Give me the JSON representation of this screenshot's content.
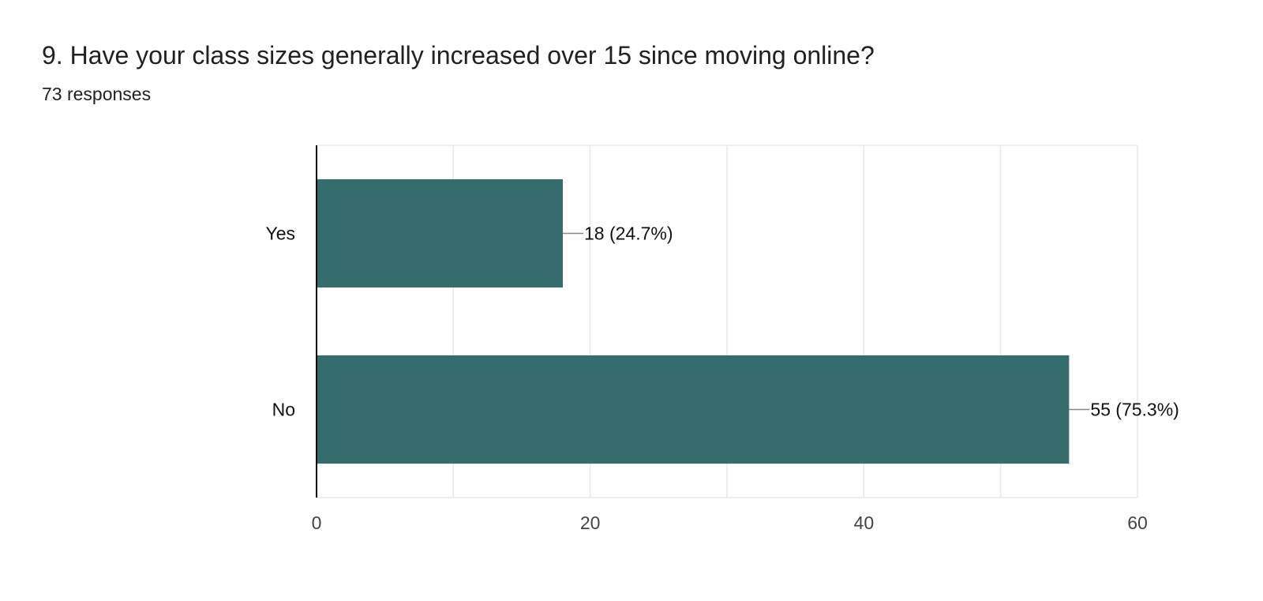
{
  "header": {
    "title": "9. Have your class sizes generally increased over 15 since moving online?",
    "responses": "73 responses"
  },
  "chart_data": {
    "type": "bar",
    "orientation": "horizontal",
    "categories": [
      "Yes",
      "No"
    ],
    "values": [
      18,
      55
    ],
    "labels": [
      "18 (24.7%)",
      "55 (75.3%)"
    ],
    "xlim": [
      0,
      60
    ],
    "xticks": [
      0,
      20,
      40,
      60
    ],
    "grid": true,
    "bar_color": "#346d6b"
  }
}
